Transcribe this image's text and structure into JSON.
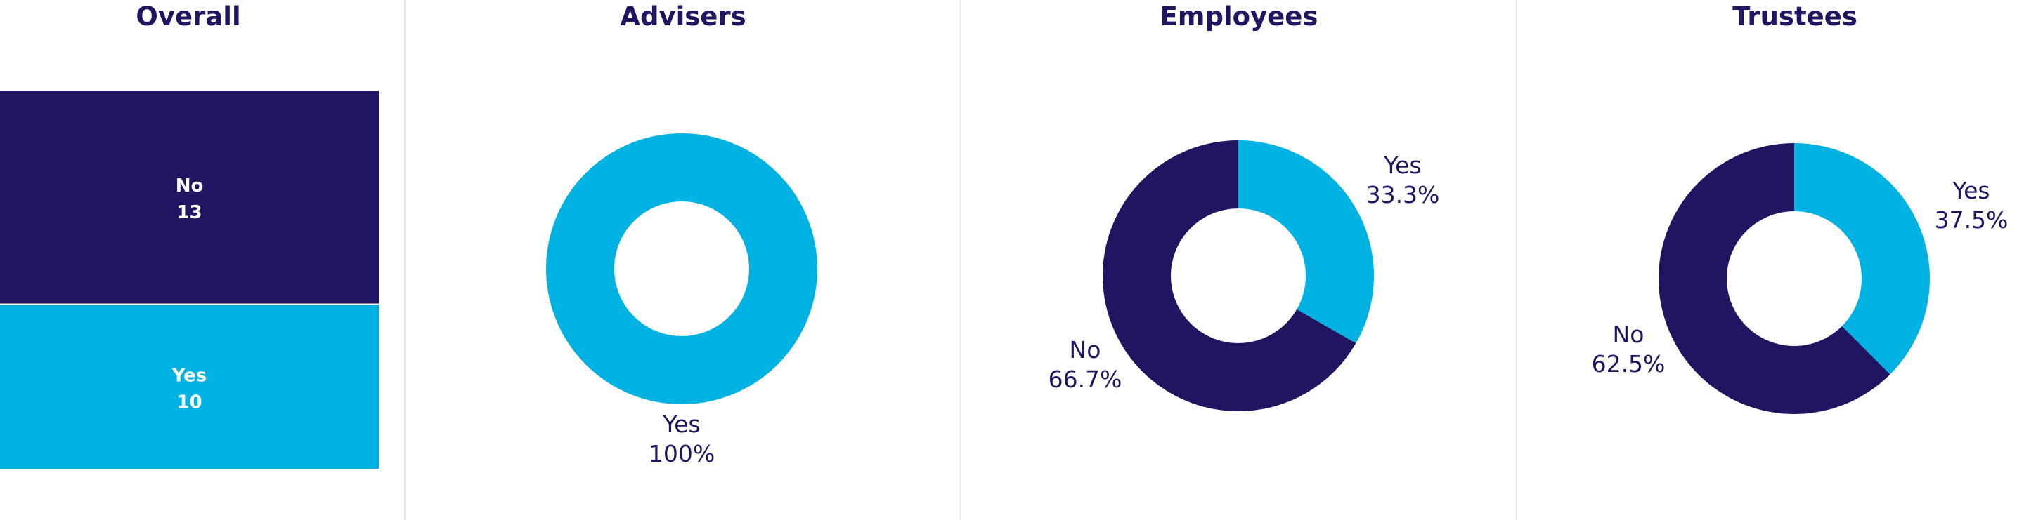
{
  "colors": {
    "no": "#1f1560",
    "yes": "#00b2e2",
    "title": "#1f1560"
  },
  "chart_data": [
    {
      "type": "treemap",
      "title": "Overall",
      "categories": [
        "No",
        "Yes"
      ],
      "values": [
        13,
        10
      ]
    },
    {
      "type": "pie",
      "title": "Advisers",
      "categories": [
        "Yes"
      ],
      "values": [
        100
      ],
      "labels": [
        "100%"
      ]
    },
    {
      "type": "pie",
      "title": "Employees",
      "categories": [
        "Yes",
        "No"
      ],
      "values": [
        33.3,
        66.7
      ],
      "labels": [
        "33.3%",
        "66.7%"
      ]
    },
    {
      "type": "pie",
      "title": "Trustees",
      "categories": [
        "Yes",
        "No"
      ],
      "values": [
        37.5,
        62.5
      ],
      "labels": [
        "37.5%",
        "62.5%"
      ]
    }
  ]
}
